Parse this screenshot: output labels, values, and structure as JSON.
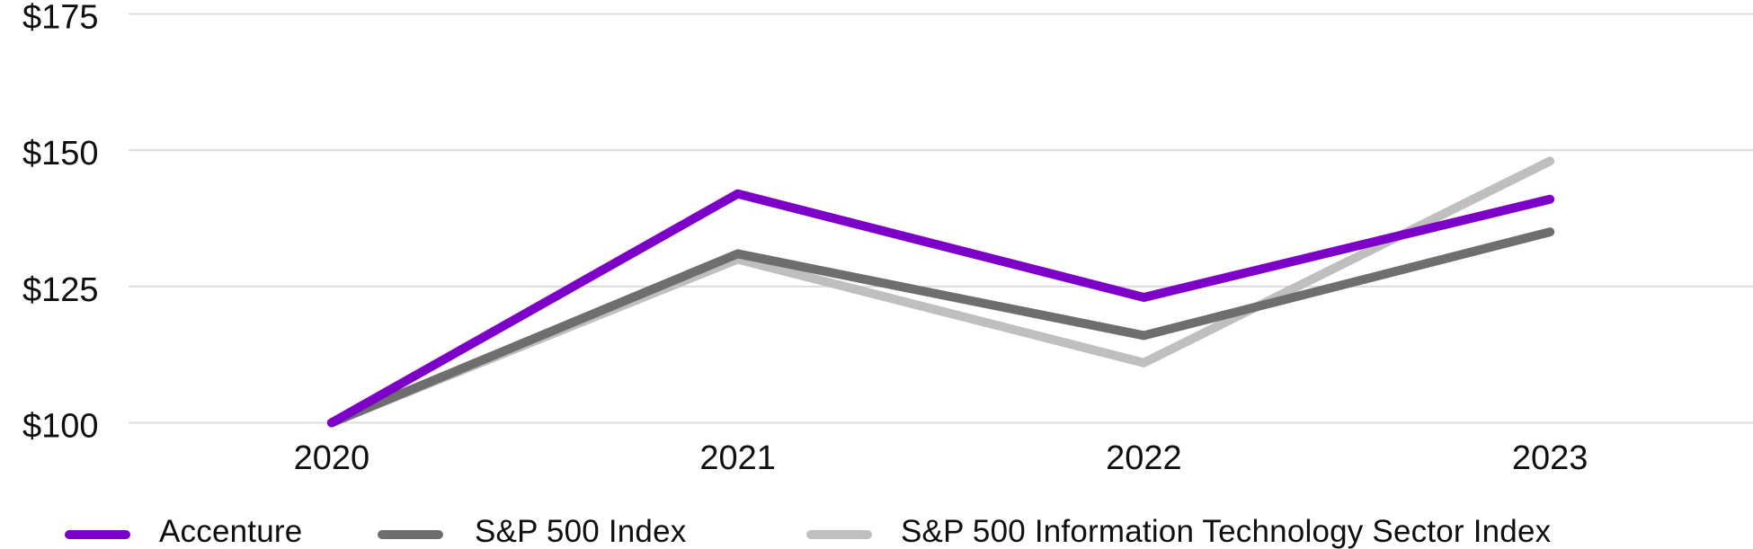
{
  "chart_data": {
    "type": "line",
    "title": "",
    "xlabel": "",
    "ylabel": "",
    "categories": [
      "2020",
      "2021",
      "2022",
      "2023"
    ],
    "series": [
      {
        "id": "accenture",
        "name": "Accenture",
        "color": "#7D00C9",
        "values": [
          100,
          142,
          123,
          141
        ]
      },
      {
        "id": "sp500",
        "name": "S&P 500 Index",
        "color": "#6E6E6E",
        "values": [
          100,
          131,
          116,
          135
        ]
      },
      {
        "id": "sp500-it",
        "name": "S&P 500 Information Technology Sector Index",
        "color": "#BFBFBF",
        "values": [
          100,
          130,
          111,
          148
        ]
      }
    ],
    "yticks": [
      {
        "value": 100,
        "label": "$100"
      },
      {
        "value": 125,
        "label": "$125"
      },
      {
        "value": 150,
        "label": "$150"
      },
      {
        "value": 175,
        "label": "$175"
      }
    ],
    "ylim": [
      100,
      175
    ],
    "grid": true,
    "legend_position": "bottom",
    "colors": {
      "gridline": "#DCDCDC",
      "text": "#0F0F0F",
      "background": "#FFFFFF"
    }
  }
}
